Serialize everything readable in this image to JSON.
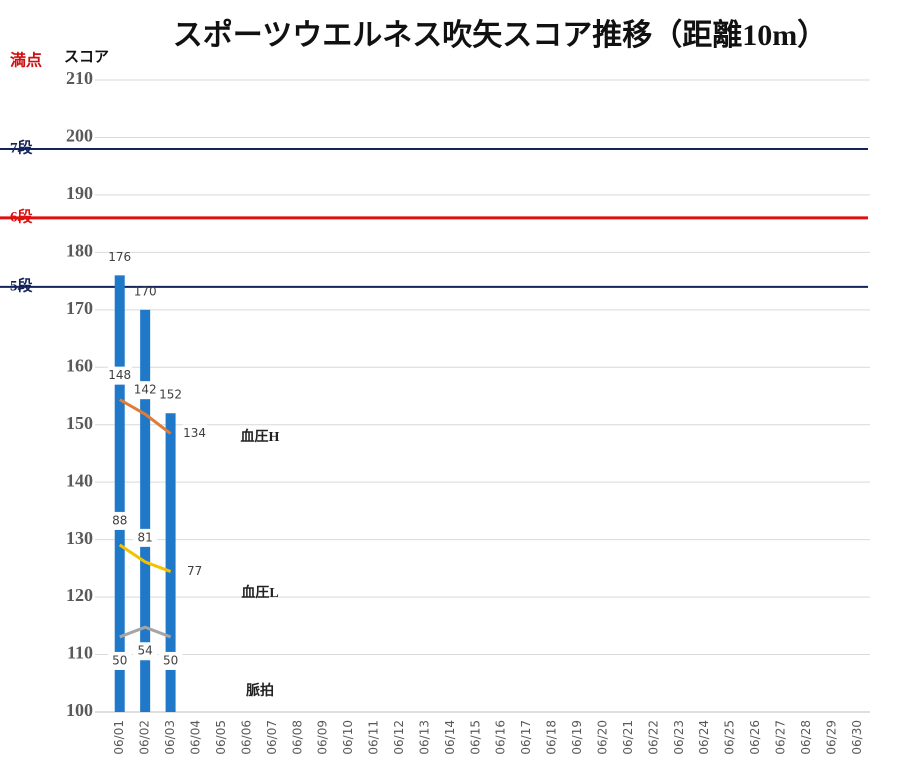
{
  "chart_data": {
    "type": "bar",
    "title": "スポーツウエルネス吹矢スコア推移（距離10m）",
    "ylabel": "スコア",
    "top_label": "満点",
    "top_label_color": "#d01010",
    "categories": [
      "06/01",
      "06/02",
      "06/03",
      "06/04",
      "06/05",
      "06/06",
      "06/07",
      "06/08",
      "06/09",
      "06/10",
      "06/11",
      "06/12",
      "06/13",
      "06/14",
      "06/15",
      "06/16",
      "06/17",
      "06/18",
      "06/19",
      "06/20",
      "06/21",
      "06/22",
      "06/23",
      "06/24",
      "06/25",
      "06/26",
      "06/27",
      "06/28",
      "06/29",
      "06/30"
    ],
    "series": [
      {
        "type": "bar",
        "color": "#1f78c8",
        "values": [
          176,
          170,
          152,
          null,
          null,
          null,
          null,
          null,
          null,
          null,
          null,
          null,
          null,
          null,
          null,
          null,
          null,
          null,
          null,
          null,
          null,
          null,
          null,
          null,
          null,
          null,
          null,
          null,
          null,
          null
        ]
      },
      {
        "type": "line",
        "name": "血圧H",
        "color": "#e07b39",
        "axis": "y2",
        "values": [
          148,
          142,
          134,
          null,
          null,
          null,
          null,
          null,
          null,
          null,
          null,
          null,
          null,
          null,
          null,
          null,
          null,
          null,
          null,
          null,
          null,
          null,
          null,
          null,
          null,
          null,
          null,
          null,
          null,
          null
        ]
      },
      {
        "type": "line",
        "name": "血圧L",
        "color": "#f2c200",
        "axis": "y2",
        "values": [
          88,
          81,
          77,
          null,
          null,
          null,
          null,
          null,
          null,
          null,
          null,
          null,
          null,
          null,
          null,
          null,
          null,
          null,
          null,
          null,
          null,
          null,
          null,
          null,
          null,
          null,
          null,
          null,
          null,
          null
        ]
      },
      {
        "type": "line",
        "name": "脈拍",
        "color": "#a5a5a5",
        "axis": "y2",
        "values": [
          50,
          54,
          50,
          null,
          null,
          null,
          null,
          null,
          null,
          null,
          null,
          null,
          null,
          null,
          null,
          null,
          null,
          null,
          null,
          null,
          null,
          null,
          null,
          null,
          null,
          null,
          null,
          null,
          null,
          null
        ]
      }
    ],
    "ylim": [
      100,
      210
    ],
    "yticks": [
      100,
      110,
      120,
      130,
      140,
      150,
      160,
      170,
      180,
      190,
      200,
      210
    ],
    "y2lim": [
      19,
      280
    ],
    "grid": true,
    "reference_lines": [
      {
        "label": "7段",
        "value": 198,
        "color": "#14235a"
      },
      {
        "label": "6段",
        "value": 186,
        "color": "#e01010"
      },
      {
        "label": "5段",
        "value": 174,
        "color": "#14235a"
      }
    ]
  }
}
